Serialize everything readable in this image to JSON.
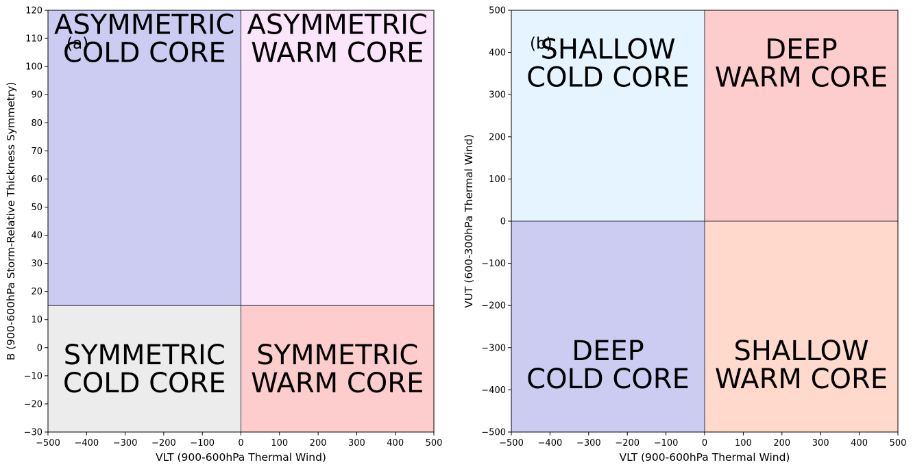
{
  "chart_data": [
    {
      "type": "heatmap",
      "panel_label": "(a)",
      "xlabel": "VLT (900-600hPa Thermal Wind)",
      "ylabel": "B (900-600hPa Storm-Relative Thickness Symmetry)",
      "xlim": [
        -500,
        500
      ],
      "ylim": [
        -30,
        120
      ],
      "xticks": [
        -500,
        -400,
        -300,
        -200,
        -100,
        0,
        100,
        200,
        300,
        400,
        500
      ],
      "yticks": [
        -30,
        -20,
        -10,
        0,
        10,
        20,
        30,
        40,
        50,
        60,
        70,
        80,
        90,
        100,
        110,
        120
      ],
      "x_divider": 0,
      "y_divider": 15,
      "grid": false,
      "regions": [
        {
          "x": [
            -500,
            0
          ],
          "y": [
            15,
            120
          ],
          "color": "#ccccf2",
          "label_lines": [
            "ASYMMETRIC",
            "COLD CORE"
          ],
          "label_y": [
            120,
            100
          ]
        },
        {
          "x": [
            0,
            500
          ],
          "y": [
            15,
            120
          ],
          "color": "#fae5fa",
          "label_lines": [
            "ASYMMETRIC",
            "WARM CORE"
          ],
          "label_y": [
            120,
            100
          ]
        },
        {
          "x": [
            -500,
            0
          ],
          "y": [
            -30,
            15
          ],
          "color": "#ececec",
          "label_lines": [
            "SYMMETRIC",
            "COLD CORE"
          ],
          "label_y": [
            -30,
            15
          ]
        },
        {
          "x": [
            0,
            500
          ],
          "y": [
            -30,
            15
          ],
          "color": "#fdcccc",
          "label_lines": [
            "SYMMETRIC",
            "WARM CORE"
          ],
          "label_y": [
            -30,
            15
          ]
        }
      ]
    },
    {
      "type": "heatmap",
      "panel_label": "(b)",
      "xlabel": "VLT (900-600hPa Thermal Wind)",
      "ylabel": "VUT (600-300hPa Thermal Wind)",
      "xlim": [
        -500,
        500
      ],
      "ylim": [
        -500,
        500
      ],
      "xticks": [
        -500,
        -400,
        -300,
        -200,
        -100,
        0,
        100,
        200,
        300,
        400,
        500
      ],
      "yticks": [
        -500,
        -400,
        -300,
        -200,
        -100,
        0,
        100,
        200,
        300,
        400,
        500
      ],
      "x_divider": 0,
      "y_divider": 0,
      "grid": false,
      "regions": [
        {
          "x": [
            -500,
            0
          ],
          "y": [
            0,
            500
          ],
          "color": "#e5f4fe",
          "label_lines": [
            "SHALLOW",
            "COLD CORE"
          ],
          "label_y": [
            500,
            250
          ]
        },
        {
          "x": [
            0,
            500
          ],
          "y": [
            0,
            500
          ],
          "color": "#fdcccc",
          "label_lines": [
            "DEEP",
            "WARM CORE"
          ],
          "label_y": [
            500,
            250
          ]
        },
        {
          "x": [
            -500,
            0
          ],
          "y": [
            -500,
            0
          ],
          "color": "#ccccf2",
          "label_lines": [
            "DEEP",
            "COLD CORE"
          ],
          "label_y": [
            -500,
            -180
          ]
        },
        {
          "x": [
            0,
            500
          ],
          "y": [
            -500,
            0
          ],
          "color": "#fed9cc",
          "label_lines": [
            "SHALLOW",
            "WARM CORE"
          ],
          "label_y": [
            -500,
            -180
          ]
        }
      ]
    }
  ]
}
